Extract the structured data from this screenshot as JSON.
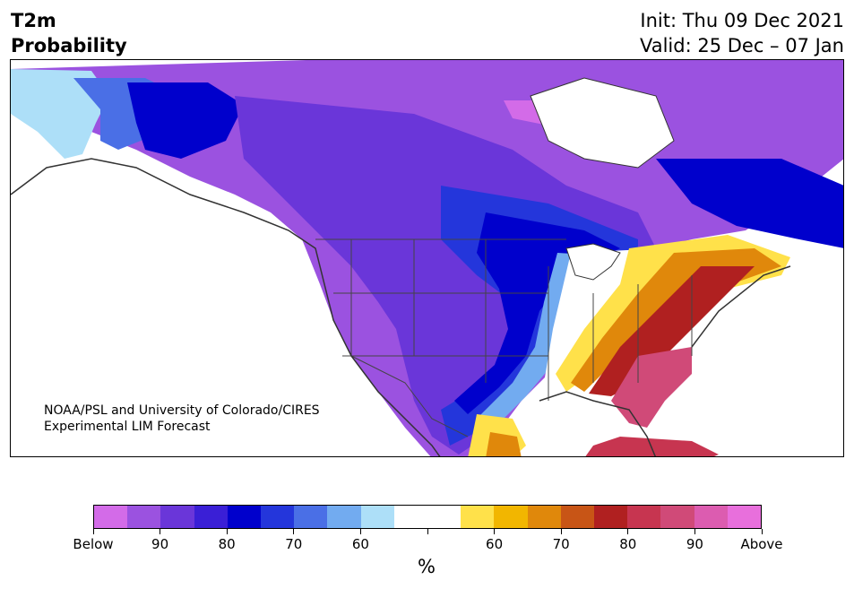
{
  "title": {
    "line1": "T2m",
    "line2": "Probability"
  },
  "info": {
    "init": "Init: Thu 09 Dec 2021",
    "valid": "Valid: 25 Dec – 07 Jan"
  },
  "credit": {
    "line1": "NOAA/PSL and University of Colorado/CIRES",
    "line2": "Experimental LIM Forecast"
  },
  "colorbar": {
    "colors": [
      "#d36be8",
      "#9b52e0",
      "#6a36d9",
      "#3a1fd6",
      "#0000cc",
      "#2436db",
      "#4a6fe6",
      "#72abf0",
      "#addff8",
      "#ffffff",
      "#ffffff",
      "#ffe14a",
      "#f2b600",
      "#e0880b",
      "#c85516",
      "#b02020",
      "#c73550",
      "#d04a78",
      "#dc5cb0",
      "#e86fdc"
    ],
    "labels": [
      {
        "text": "Below",
        "seg": 0
      },
      {
        "text": "90",
        "seg": 2
      },
      {
        "text": "80",
        "seg": 4
      },
      {
        "text": "70",
        "seg": 6
      },
      {
        "text": "60",
        "seg": 8
      },
      {
        "text": "",
        "seg": 10
      },
      {
        "text": "60",
        "seg": 12
      },
      {
        "text": "70",
        "seg": 14
      },
      {
        "text": "80",
        "seg": 16
      },
      {
        "text": "90",
        "seg": 18
      },
      {
        "text": "Above",
        "seg": 20
      }
    ],
    "unit": "%"
  }
}
